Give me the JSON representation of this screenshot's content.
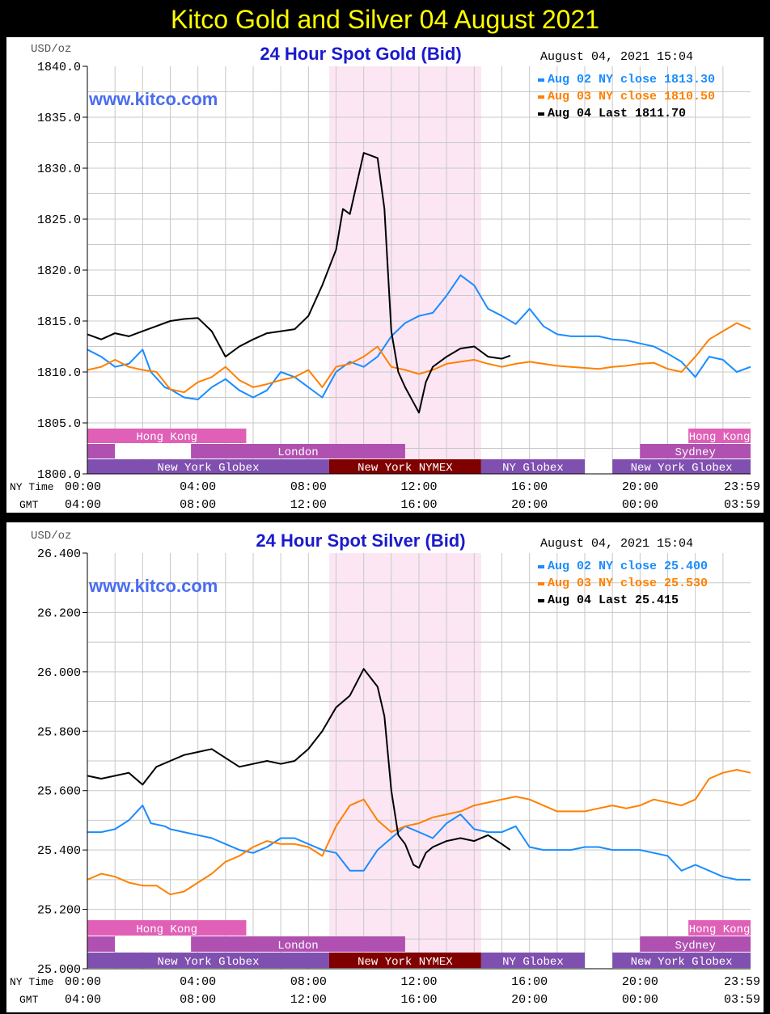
{
  "page_title": "Kitco Gold and Silver 04 August 2021",
  "chart_data": [
    {
      "type": "line",
      "title": "24 Hour Spot Gold (Bid)",
      "watermark": "www.kitco.com",
      "ylabel": "USD/oz",
      "timestamp": "August 04, 2021 15:04",
      "xlabel_ny": "NY Time",
      "xlabel_gmt": "GMT",
      "x_unit": "hours (NY time)",
      "xlim": [
        0,
        24
      ],
      "ylim": [
        1800,
        1840
      ],
      "y_ticks": [
        "1840.0",
        "1835.0",
        "1830.0",
        "1825.0",
        "1820.0",
        "1815.0",
        "1810.0",
        "1805.0",
        "1800.0"
      ],
      "y_tick_values": [
        1840,
        1835,
        1830,
        1825,
        1820,
        1815,
        1810,
        1805,
        1800
      ],
      "x_ticks_ny": [
        "00:00",
        "04:00",
        "08:00",
        "12:00",
        "16:00",
        "20:00",
        "23:59"
      ],
      "x_ticks_gmt": [
        "04:00",
        "08:00",
        "12:00",
        "16:00",
        "20:00",
        "00:00",
        "03:59"
      ],
      "x_tick_values": [
        0,
        4,
        8,
        12,
        16,
        20,
        24
      ],
      "grid": true,
      "highlight": {
        "from": 8.75,
        "to": 14.25,
        "color": "#fce6f4"
      },
      "legend": [
        {
          "text": "Aug 02 NY close 1813.30",
          "color": "#1a8cff"
        },
        {
          "text": "Aug 03 NY close 1810.50",
          "color": "#ff8000"
        },
        {
          "text": "Aug 04 Last 1811.70",
          "color": "#000000"
        }
      ],
      "sessions": [
        {
          "label": "Hong Kong",
          "row": 0,
          "from": 0,
          "to": 5.75,
          "color": "#e060b8"
        },
        {
          "label": "Hong Kong",
          "row": 0,
          "from": 21.75,
          "to": 24,
          "color": "#e060b8"
        },
        {
          "label": "",
          "row": 1,
          "from": 0,
          "to": 1,
          "color": "#b050b0"
        },
        {
          "label": "",
          "row": 1,
          "from": 1,
          "to": 3.75,
          "color": "#ffffff"
        },
        {
          "label": "London",
          "row": 1,
          "from": 3.75,
          "to": 11.5,
          "color": "#b050b0"
        },
        {
          "label": "Sydney",
          "row": 1,
          "from": 20,
          "to": 24,
          "color": "#b050b0"
        },
        {
          "label": "New York Globex",
          "row": 2,
          "from": 0,
          "to": 8.75,
          "color": "#8050b0"
        },
        {
          "label": "New York NYMEX",
          "row": 2,
          "from": 8.75,
          "to": 14.25,
          "color": "#800000"
        },
        {
          "label": "NY Globex",
          "row": 2,
          "from": 14.25,
          "to": 18,
          "color": "#8050b0"
        },
        {
          "label": "New York Globex",
          "row": 2,
          "from": 19,
          "to": 24,
          "color": "#8050b0"
        }
      ],
      "series": [
        {
          "name": "Aug 02 NY close 1813.30",
          "color": "#1a8cff",
          "x": [
            0,
            0.5,
            1,
            1.5,
            2,
            2.3,
            2.8,
            3,
            3.5,
            4,
            4.5,
            5,
            5.5,
            6,
            6.5,
            7,
            7.5,
            8,
            8.5,
            9,
            9.5,
            10,
            10.5,
            11,
            11.5,
            12,
            12.5,
            13,
            13.5,
            14,
            14.5,
            15,
            15.5,
            16,
            16.5,
            17,
            17.5,
            18,
            18.5,
            19,
            19.5,
            20,
            20.5,
            21,
            21.5,
            22,
            22.5,
            23,
            23.5,
            24
          ],
          "y": [
            1812.2,
            1811.5,
            1810.5,
            1810.8,
            1812.2,
            1810,
            1808.5,
            1808.3,
            1807.5,
            1807.3,
            1808.5,
            1809.3,
            1808.2,
            1807.5,
            1808.2,
            1810,
            1809.5,
            1808.5,
            1807.5,
            1810,
            1811,
            1810.5,
            1811.5,
            1813.5,
            1814.8,
            1815.5,
            1815.8,
            1817.5,
            1819.5,
            1818.5,
            1816.2,
            1815.5,
            1814.7,
            1816.2,
            1814.5,
            1813.7,
            1813.5,
            1813.5,
            1813.5,
            1813.2,
            1813.1,
            1812.8,
            1812.5,
            1811.8,
            1811,
            1809.5,
            1811.5,
            1811.2,
            1810,
            1810.5
          ]
        },
        {
          "name": "Aug 03 NY close 1810.50",
          "color": "#ff8000",
          "x": [
            0,
            0.5,
            1,
            1.5,
            2,
            2.5,
            3,
            3.5,
            4,
            4.5,
            5,
            5.5,
            6,
            6.5,
            7,
            7.5,
            8,
            8.5,
            9,
            9.5,
            10,
            10.5,
            11,
            11.5,
            12,
            12.5,
            13,
            13.5,
            14,
            14.5,
            15,
            15.5,
            16,
            16.5,
            17,
            17.5,
            18,
            18.5,
            19,
            19.5,
            20,
            20.5,
            21,
            21.5,
            22,
            22.5,
            23,
            23.5,
            24
          ],
          "y": [
            1810.2,
            1810.5,
            1811.2,
            1810.5,
            1810.2,
            1810,
            1808.3,
            1808,
            1809,
            1809.5,
            1810.5,
            1809.2,
            1808.5,
            1808.8,
            1809.2,
            1809.5,
            1810.2,
            1808.5,
            1810.5,
            1810.8,
            1811.5,
            1812.5,
            1810.5,
            1810.2,
            1809.8,
            1810.2,
            1810.8,
            1811,
            1811.2,
            1810.8,
            1810.5,
            1810.8,
            1811,
            1810.8,
            1810.6,
            1810.5,
            1810.4,
            1810.3,
            1810.5,
            1810.6,
            1810.8,
            1810.9,
            1810.3,
            1810,
            1811.5,
            1813.2,
            1814,
            1814.8,
            1814.2
          ]
        },
        {
          "name": "Aug 04 Last 1811.70",
          "color": "#000000",
          "x": [
            0,
            0.5,
            1,
            1.5,
            2,
            2.5,
            3,
            3.5,
            4,
            4.5,
            5,
            5.5,
            6,
            6.5,
            7,
            7.5,
            8,
            8.5,
            9,
            9.25,
            9.5,
            10,
            10.5,
            10.75,
            11,
            11.25,
            11.5,
            11.8,
            12,
            12.25,
            12.5,
            13,
            13.5,
            14,
            14.5,
            15,
            15.3
          ],
          "y": [
            1813.7,
            1813.2,
            1813.8,
            1813.5,
            1814,
            1814.5,
            1815,
            1815.2,
            1815.3,
            1814,
            1811.5,
            1812.5,
            1813.2,
            1813.8,
            1814,
            1814.2,
            1815.5,
            1818.5,
            1822,
            1826,
            1825.5,
            1831.5,
            1831,
            1826,
            1814,
            1810,
            1808.5,
            1807,
            1806,
            1809,
            1810.5,
            1811.5,
            1812.3,
            1812.5,
            1811.5,
            1811.3,
            1811.6
          ]
        }
      ]
    },
    {
      "type": "line",
      "title": "24 Hour Spot Silver (Bid)",
      "watermark": "www.kitco.com",
      "ylabel": "USD/oz",
      "timestamp": "August 04, 2021 15:04",
      "xlabel_ny": "NY Time",
      "xlabel_gmt": "GMT",
      "x_unit": "hours (NY time)",
      "xlim": [
        0,
        24
      ],
      "ylim": [
        25.0,
        26.4
      ],
      "y_ticks": [
        "26.400",
        "26.200",
        "26.000",
        "25.800",
        "25.600",
        "25.400",
        "25.200",
        "25.000"
      ],
      "y_tick_values": [
        26.4,
        26.2,
        26.0,
        25.8,
        25.6,
        25.4,
        25.2,
        25.0
      ],
      "x_ticks_ny": [
        "00:00",
        "04:00",
        "08:00",
        "12:00",
        "16:00",
        "20:00",
        "23:59"
      ],
      "x_ticks_gmt": [
        "04:00",
        "08:00",
        "12:00",
        "16:00",
        "20:00",
        "00:00",
        "03:59"
      ],
      "x_tick_values": [
        0,
        4,
        8,
        12,
        16,
        20,
        24
      ],
      "grid": true,
      "highlight": {
        "from": 8.75,
        "to": 14.25,
        "color": "#fce6f4"
      },
      "legend": [
        {
          "text": "Aug 02 NY close 25.400",
          "color": "#1a8cff"
        },
        {
          "text": "Aug 03 NY close 25.530",
          "color": "#ff8000"
        },
        {
          "text": "Aug 04 Last 25.415",
          "color": "#000000"
        }
      ],
      "sessions": [
        {
          "label": "Hong Kong",
          "row": 0,
          "from": 0,
          "to": 5.75,
          "color": "#e060b8"
        },
        {
          "label": "Hong Kong",
          "row": 0,
          "from": 21.75,
          "to": 24,
          "color": "#e060b8"
        },
        {
          "label": "",
          "row": 1,
          "from": 0,
          "to": 1,
          "color": "#b050b0"
        },
        {
          "label": "",
          "row": 1,
          "from": 1,
          "to": 3.75,
          "color": "#ffffff"
        },
        {
          "label": "London",
          "row": 1,
          "from": 3.75,
          "to": 11.5,
          "color": "#b050b0"
        },
        {
          "label": "Sydney",
          "row": 1,
          "from": 20,
          "to": 24,
          "color": "#b050b0"
        },
        {
          "label": "New York Globex",
          "row": 2,
          "from": 0,
          "to": 8.75,
          "color": "#8050b0"
        },
        {
          "label": "New York NYMEX",
          "row": 2,
          "from": 8.75,
          "to": 14.25,
          "color": "#800000"
        },
        {
          "label": "NY Globex",
          "row": 2,
          "from": 14.25,
          "to": 18,
          "color": "#8050b0"
        },
        {
          "label": "New York Globex",
          "row": 2,
          "from": 19,
          "to": 24,
          "color": "#8050b0"
        }
      ],
      "series": [
        {
          "name": "Aug 02 NY close 25.400",
          "color": "#1a8cff",
          "x": [
            0,
            0.5,
            1,
            1.5,
            2,
            2.3,
            2.8,
            3,
            3.5,
            4,
            4.5,
            5,
            5.5,
            6,
            6.5,
            7,
            7.5,
            8,
            8.5,
            9,
            9.5,
            10,
            10.5,
            11,
            11.5,
            12,
            12.5,
            13,
            13.5,
            14,
            14.5,
            15,
            15.5,
            16,
            16.5,
            17,
            17.5,
            18,
            18.5,
            19,
            19.5,
            20,
            20.5,
            21,
            21.5,
            22,
            22.5,
            23,
            23.5,
            24
          ],
          "y": [
            25.46,
            25.46,
            25.47,
            25.5,
            25.55,
            25.49,
            25.48,
            25.47,
            25.46,
            25.45,
            25.44,
            25.42,
            25.4,
            25.39,
            25.41,
            25.44,
            25.44,
            25.42,
            25.4,
            25.39,
            25.33,
            25.33,
            25.4,
            25.44,
            25.48,
            25.46,
            25.44,
            25.49,
            25.52,
            25.47,
            25.46,
            25.46,
            25.48,
            25.41,
            25.4,
            25.4,
            25.4,
            25.41,
            25.41,
            25.4,
            25.4,
            25.4,
            25.39,
            25.38,
            25.33,
            25.35,
            25.33,
            25.31,
            25.3,
            25.3
          ]
        },
        {
          "name": "Aug 03 NY close 25.530",
          "color": "#ff8000",
          "x": [
            0,
            0.5,
            1,
            1.5,
            2,
            2.5,
            3,
            3.5,
            4,
            4.5,
            5,
            5.5,
            6,
            6.5,
            7,
            7.5,
            8,
            8.5,
            9,
            9.5,
            10,
            10.5,
            11,
            11.5,
            12,
            12.5,
            13,
            13.5,
            14,
            14.5,
            15,
            15.5,
            16,
            16.5,
            17,
            17.5,
            18,
            18.5,
            19,
            19.5,
            20,
            20.5,
            21,
            21.5,
            22,
            22.5,
            23,
            23.5,
            24
          ],
          "y": [
            25.3,
            25.32,
            25.31,
            25.29,
            25.28,
            25.28,
            25.25,
            25.26,
            25.29,
            25.32,
            25.36,
            25.38,
            25.41,
            25.43,
            25.42,
            25.42,
            25.41,
            25.38,
            25.48,
            25.55,
            25.57,
            25.5,
            25.46,
            25.48,
            25.49,
            25.51,
            25.52,
            25.53,
            25.55,
            25.56,
            25.57,
            25.58,
            25.57,
            25.55,
            25.53,
            25.53,
            25.53,
            25.54,
            25.55,
            25.54,
            25.55,
            25.57,
            25.56,
            25.55,
            25.57,
            25.64,
            25.66,
            25.67,
            25.66
          ]
        },
        {
          "name": "Aug 04 Last 25.415",
          "color": "#000000",
          "x": [
            0,
            0.5,
            1,
            1.5,
            2,
            2.5,
            3,
            3.5,
            4,
            4.5,
            5,
            5.5,
            6,
            6.5,
            7,
            7.5,
            8,
            8.5,
            9,
            9.25,
            9.5,
            10,
            10.5,
            10.75,
            11,
            11.25,
            11.5,
            11.8,
            12,
            12.25,
            12.5,
            13,
            13.5,
            14,
            14.5,
            15,
            15.3
          ],
          "y": [
            25.65,
            25.64,
            25.65,
            25.66,
            25.62,
            25.68,
            25.7,
            25.72,
            25.73,
            25.74,
            25.71,
            25.68,
            25.69,
            25.7,
            25.69,
            25.7,
            25.74,
            25.8,
            25.88,
            25.9,
            25.92,
            26.01,
            25.95,
            25.85,
            25.6,
            25.45,
            25.42,
            25.35,
            25.34,
            25.39,
            25.41,
            25.43,
            25.44,
            25.43,
            25.45,
            25.42,
            25.4
          ]
        }
      ]
    }
  ]
}
